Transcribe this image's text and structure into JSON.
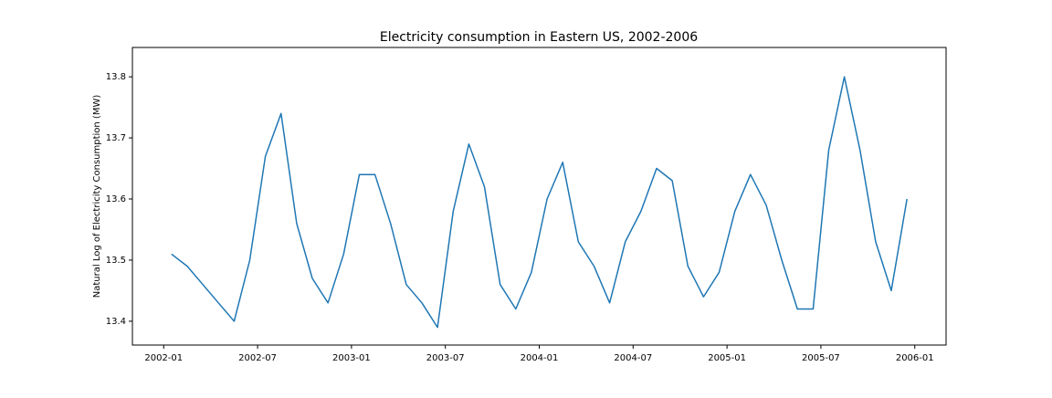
{
  "chart_data": {
    "type": "line",
    "title": "Electricity consumption in Eastern US, 2002-2006",
    "y_label": "Natural Log of Electricity Consumption (MW)",
    "x": [
      "2002-01",
      "2002-02",
      "2002-03",
      "2002-04",
      "2002-05",
      "2002-06",
      "2002-07",
      "2002-08",
      "2002-09",
      "2002-10",
      "2002-11",
      "2002-12",
      "2003-01",
      "2003-02",
      "2003-03",
      "2003-04",
      "2003-05",
      "2003-06",
      "2003-07",
      "2003-08",
      "2003-09",
      "2003-10",
      "2003-11",
      "2003-12",
      "2004-01",
      "2004-02",
      "2004-03",
      "2004-04",
      "2004-05",
      "2004-06",
      "2004-07",
      "2004-08",
      "2004-09",
      "2004-10",
      "2004-11",
      "2004-12",
      "2005-01",
      "2005-02",
      "2005-03",
      "2005-04",
      "2005-05",
      "2005-06",
      "2005-07",
      "2005-08",
      "2005-09",
      "2005-10",
      "2005-11",
      "2005-12"
    ],
    "series": [
      {
        "name": "Electricity consumption",
        "color": "#1f77b4",
        "values": [
          13.51,
          13.49,
          13.46,
          13.43,
          13.4,
          13.5,
          13.67,
          13.74,
          13.56,
          13.47,
          13.43,
          13.51,
          13.64,
          13.64,
          13.56,
          13.46,
          13.43,
          13.39,
          13.58,
          13.69,
          13.62,
          13.46,
          13.42,
          13.48,
          13.6,
          13.66,
          13.53,
          13.49,
          13.43,
          13.53,
          13.58,
          13.65,
          13.63,
          13.49,
          13.44,
          13.48,
          13.58,
          13.64,
          13.59,
          13.5,
          13.42,
          13.42,
          13.68,
          13.8,
          13.68,
          13.53,
          13.45,
          13.6
        ]
      }
    ],
    "xlim": [
      "2001-11",
      "2006-03"
    ],
    "xticks": [
      "2002-01",
      "2002-07",
      "2003-01",
      "2003-07",
      "2004-01",
      "2004-07",
      "2005-01",
      "2005-07",
      "2006-01"
    ],
    "ylim": [
      13.361,
      13.848
    ],
    "yticks": [
      13.4,
      13.5,
      13.6,
      13.7,
      13.8
    ]
  }
}
